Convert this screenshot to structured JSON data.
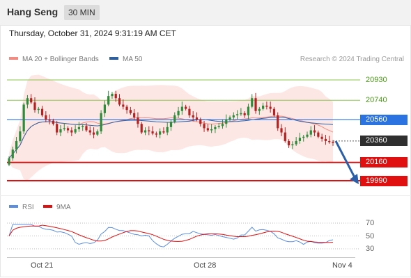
{
  "header": {
    "title": "Hang Seng",
    "timeframe": "30 MIN"
  },
  "timestamp": "Thursday, October 31, 2024 9:31:19 AM CET",
  "legend": {
    "ma20_label": "MA 20 + Bollinger Bands",
    "ma50_label": "MA 50",
    "credit": "Research © 2024 Trading Central",
    "rsi_label": "RSI",
    "rsi_ma_label": "9MA"
  },
  "colors": {
    "ma20": "#f28b82",
    "ma50": "#2f5f9e",
    "band": "#fde3df",
    "up": "#2e8b3a",
    "down": "#b32222",
    "green_level": "#8bc34a",
    "blue_level": "#2a73e0",
    "red_level": "#e01010",
    "rsi": "#5b8de0",
    "rsi_ma": "#e01010",
    "arrow": "#2a5fa8"
  },
  "levels": [
    {
      "value": "20930",
      "style": "green"
    },
    {
      "value": "20740",
      "style": "green"
    },
    {
      "value": "20560",
      "style": "blue"
    },
    {
      "value": "20360",
      "style": "dark"
    },
    {
      "value": "20160",
      "style": "red"
    },
    {
      "value": "19990",
      "style": "red"
    }
  ],
  "rsi_axis": [
    "70",
    "50",
    "30"
  ],
  "x_labels": [
    "Oct 21",
    "Oct 28",
    "Nov 4"
  ],
  "chart_data": {
    "type": "candlestick",
    "y_range": [
      19950,
      21000
    ],
    "closes": [
      20200,
      20280,
      20360,
      20450,
      20700,
      20760,
      20720,
      20650,
      20660,
      20600,
      20560,
      20550,
      20520,
      20440,
      20470,
      20480,
      20460,
      20440,
      20470,
      20490,
      20500,
      20460,
      20440,
      20420,
      20450,
      20620,
      20700,
      20780,
      20800,
      20760,
      20700,
      20680,
      20650,
      20620,
      20580,
      20520,
      20440,
      20460,
      20450,
      20430,
      20420,
      20450,
      20440,
      20490,
      20540,
      20600,
      20640,
      20680,
      20660,
      20600,
      20580,
      20560,
      20520,
      20480,
      20460,
      20470,
      20490,
      20500,
      20520,
      20560,
      20580,
      20600,
      20610,
      20620,
      20600,
      20680,
      20760,
      20640,
      20660,
      20690,
      20680,
      20660,
      20600,
      20480,
      20440,
      20360,
      20320,
      20330,
      20360,
      20390,
      20400,
      20420,
      20460,
      20440,
      20400,
      20380,
      20360,
      20350,
      20340
    ],
    "rsi": {
      "axis": [
        70,
        50,
        30
      ]
    },
    "levels": [
      20930,
      20740,
      20560,
      20360,
      20160,
      19990
    ],
    "forecast": {
      "from": 20360,
      "to": 19990
    },
    "x_labels": [
      "Oct 21",
      "Oct 28",
      "Nov 4"
    ]
  }
}
